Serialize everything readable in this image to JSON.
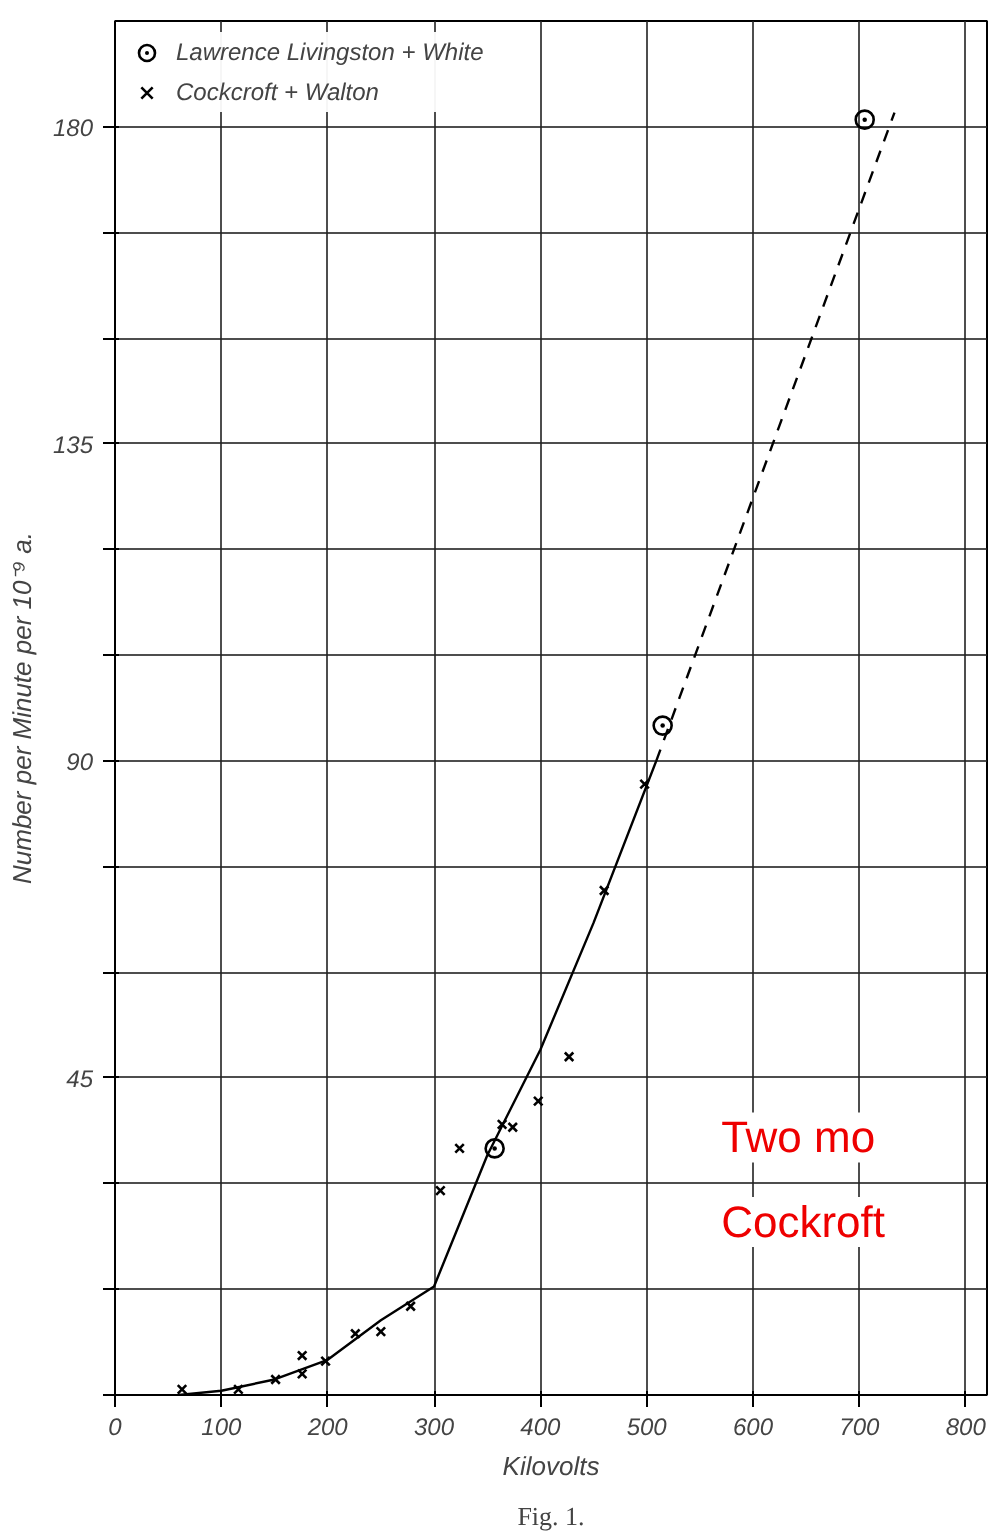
{
  "chart_data": {
    "type": "scatter",
    "xlabel": "Kilovolts",
    "ylabel": "Number per Minute per 10⁻⁹ a.",
    "annotations": [
      "Fig. 1.",
      "Two mo",
      "Cockroft"
    ],
    "xlim": [
      0,
      820
    ],
    "ylim": [
      0,
      195
    ],
    "xticks": [
      0,
      100,
      200,
      300,
      400,
      500,
      600,
      700,
      800
    ],
    "yticks": [
      {
        "value": 0,
        "label": null
      },
      {
        "value": 15,
        "label": null
      },
      {
        "value": 30,
        "label": null
      },
      45,
      {
        "value": 60,
        "label": null
      },
      {
        "value": 75,
        "label": null
      },
      90,
      {
        "value": 105,
        "label": null
      },
      {
        "value": 120,
        "label": null
      },
      135,
      {
        "value": 150,
        "label": null
      },
      {
        "value": 165,
        "label": null
      },
      180
    ],
    "grid": true,
    "legend": "top left",
    "series": [
      {
        "name": "Lawrence Livingston + White",
        "marker": "circle",
        "color": "#000000",
        "x": [
          357,
          515,
          705
        ],
        "values": [
          35,
          95,
          181
        ]
      },
      {
        "name": "Cockcroft + Walton",
        "marker": "cross",
        "color": "#000000",
        "x": [
          63,
          116,
          151,
          176,
          176,
          198,
          226,
          250,
          278,
          306,
          324,
          364,
          374,
          398,
          427,
          460,
          498
        ],
        "values": [
          0.8,
          0.8,
          2.2,
          5.6,
          3,
          4.8,
          8.7,
          9,
          12.6,
          29,
          35,
          38.4,
          38,
          41.7,
          48,
          71.6,
          86.7
        ]
      },
      {
        "type": "line",
        "line_style": "solid",
        "color": "#000000",
        "x": [
          60,
          100,
          150,
          200,
          250,
          300,
          350,
          400,
          450,
          509
        ],
        "values": [
          0,
          0.6,
          2.2,
          5,
          10.6,
          15.4,
          34,
          49,
          67,
          90
        ]
      },
      {
        "type": "line",
        "line_style": "dashed",
        "color": "#000000",
        "x": [
          509,
          733
        ],
        "values": [
          90,
          182
        ]
      }
    ]
  }
}
